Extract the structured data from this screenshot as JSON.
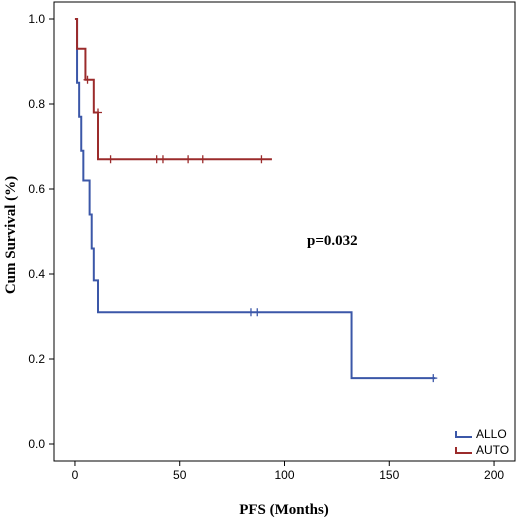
{
  "chart_data": {
    "type": "line",
    "xlabel": "PFS (Months)",
    "ylabel": "Cum Survival (%)",
    "xlim": [
      -10,
      210
    ],
    "ylim": [
      -0.04,
      1.04
    ],
    "xticks": [
      0,
      50,
      100,
      150,
      200
    ],
    "yticks": [
      0.0,
      0.2,
      0.4,
      0.6,
      0.8,
      1.0
    ],
    "ytick_labels": [
      "0.0",
      "0.2",
      "0.4",
      "0.6",
      "0.8",
      "1.0"
    ],
    "grid": false,
    "legend_position": "bottom-right",
    "annotation": "p=0.032",
    "series": [
      {
        "name": "ALLO",
        "color": "#3b57a8",
        "steps": [
          [
            0,
            1.0
          ],
          [
            1,
            0.85
          ],
          [
            2,
            0.77
          ],
          [
            3,
            0.69
          ],
          [
            4,
            0.62
          ],
          [
            7,
            0.54
          ],
          [
            8,
            0.46
          ],
          [
            9,
            0.385
          ],
          [
            11,
            0.31
          ],
          [
            132,
            0.155
          ],
          [
            172,
            0.155
          ]
        ],
        "censored": [
          [
            84,
            0.31
          ],
          [
            87,
            0.31
          ],
          [
            171,
            0.155
          ]
        ]
      },
      {
        "name": "AUTO",
        "color": "#9b2b2b",
        "steps": [
          [
            0,
            1.0
          ],
          [
            1,
            0.93
          ],
          [
            5,
            0.857
          ],
          [
            9,
            0.78
          ],
          [
            11,
            0.67
          ],
          [
            94,
            0.67
          ]
        ],
        "censored": [
          [
            6,
            0.857
          ],
          [
            11,
            0.78
          ],
          [
            17,
            0.67
          ],
          [
            39,
            0.67
          ],
          [
            42,
            0.67
          ],
          [
            54,
            0.67
          ],
          [
            61,
            0.67
          ],
          [
            89,
            0.67
          ]
        ]
      }
    ]
  }
}
